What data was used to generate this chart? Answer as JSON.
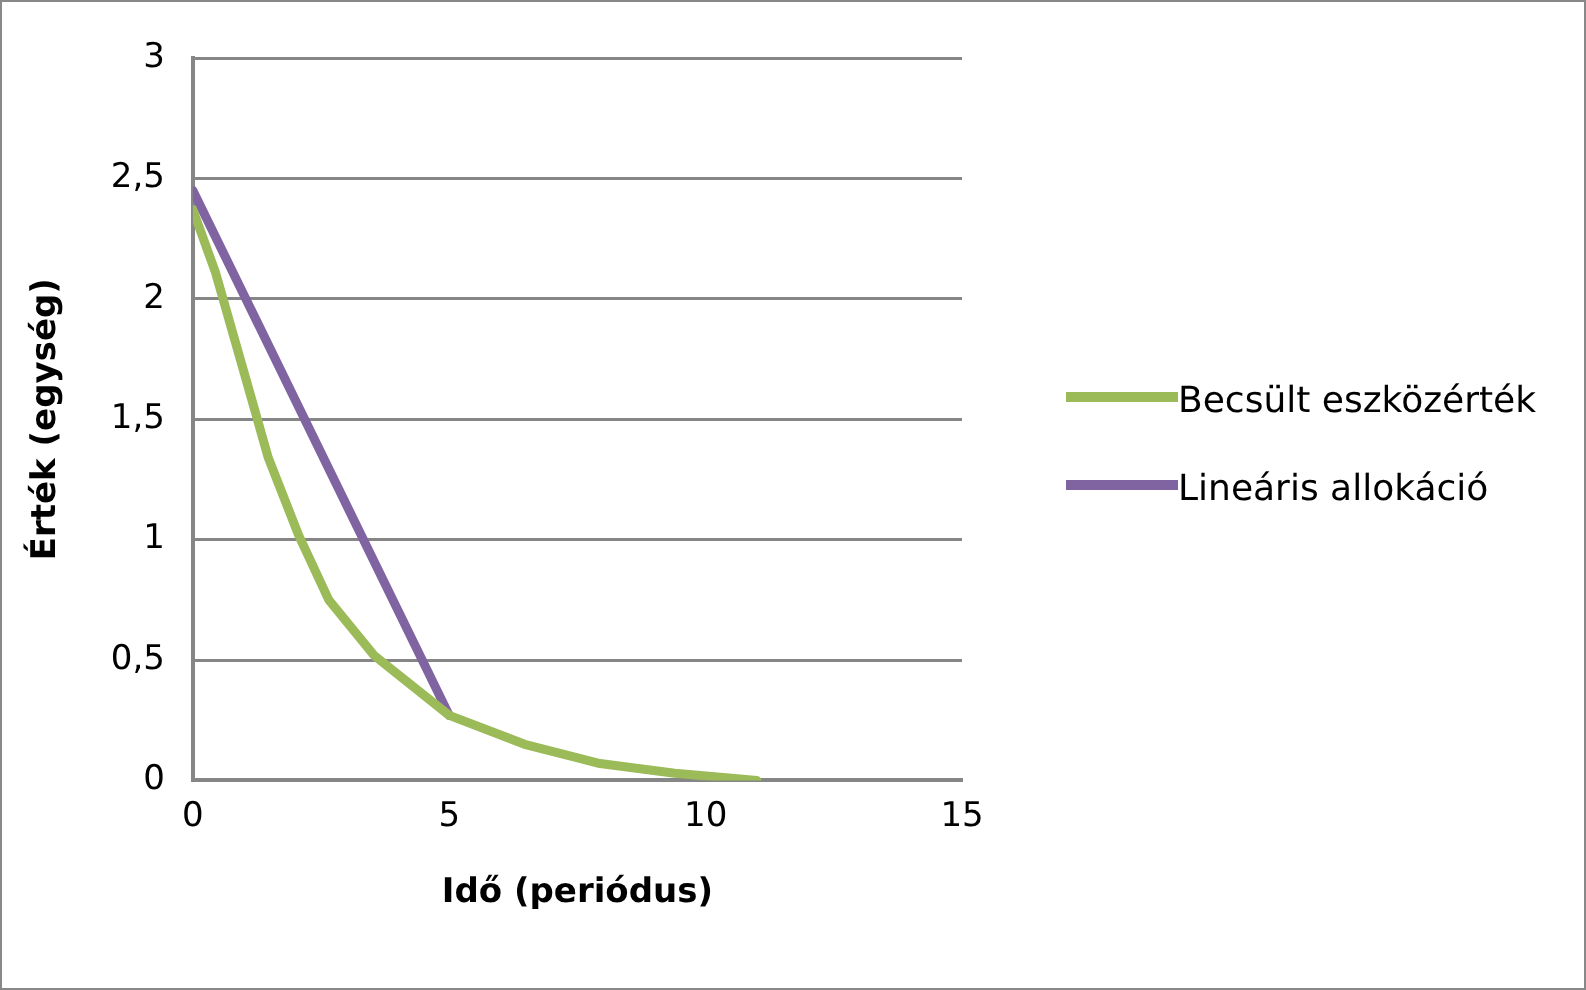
{
  "chart_data": {
    "type": "line",
    "xlabel": "Idő (periódus)",
    "ylabel": "Érték (egység)",
    "xlim": [
      0,
      15
    ],
    "xticks": [
      0,
      5,
      10,
      15
    ],
    "ylim": [
      0,
      3
    ],
    "yticks": [
      0,
      {
        "value": 0.5,
        "label": "0,5"
      },
      1,
      {
        "value": 1.5,
        "label": "1,5"
      },
      2,
      {
        "value": 2.5,
        "label": "2,5"
      },
      3
    ],
    "grid": "y",
    "legend": "right",
    "marker": "none",
    "line_style": "solid",
    "series": [
      {
        "name": "Becsült eszközérték",
        "color": "#9bbb59",
        "x": [
          0,
          0.44,
          1.03,
          1.47,
          2.06,
          2.65,
          3.53,
          5,
          6.47,
          7.94,
          9.4,
          11
        ],
        "values": [
          2.37,
          2.11,
          1.67,
          1.34,
          1.02,
          0.75,
          0.52,
          0.27,
          0.15,
          0.07,
          0.03,
          0
        ]
      },
      {
        "name": "Lineáris allokáció",
        "color": "#8064a2",
        "x": [
          0,
          5
        ],
        "values": [
          2.45,
          0.27
        ]
      }
    ]
  }
}
